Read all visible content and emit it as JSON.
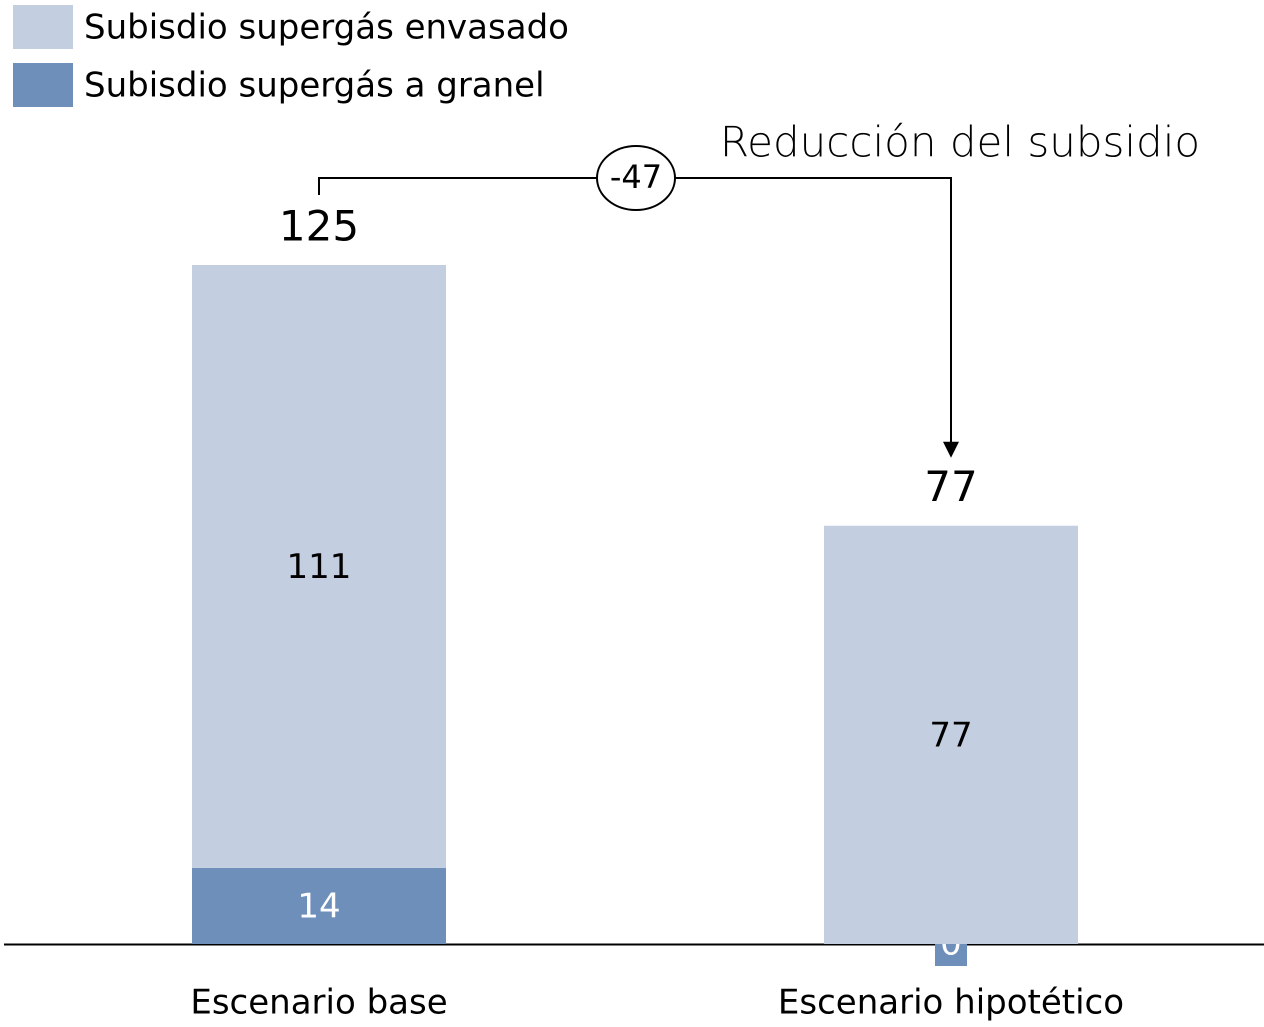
{
  "chart_data": {
    "type": "stacked_bar",
    "categories": [
      "Escenario base",
      "Escenario hipotético"
    ],
    "series": [
      {
        "name": "Subisdio supergás envasado",
        "color": "#c3cee0",
        "values": [
          111,
          77
        ]
      },
      {
        "name": "Subisdio supergás a granel",
        "color": "#6f8fbb",
        "values": [
          14,
          0
        ]
      }
    ],
    "totals": [
      125,
      77
    ],
    "annotation": "Reducción del subsidio",
    "difference": -47
  }
}
